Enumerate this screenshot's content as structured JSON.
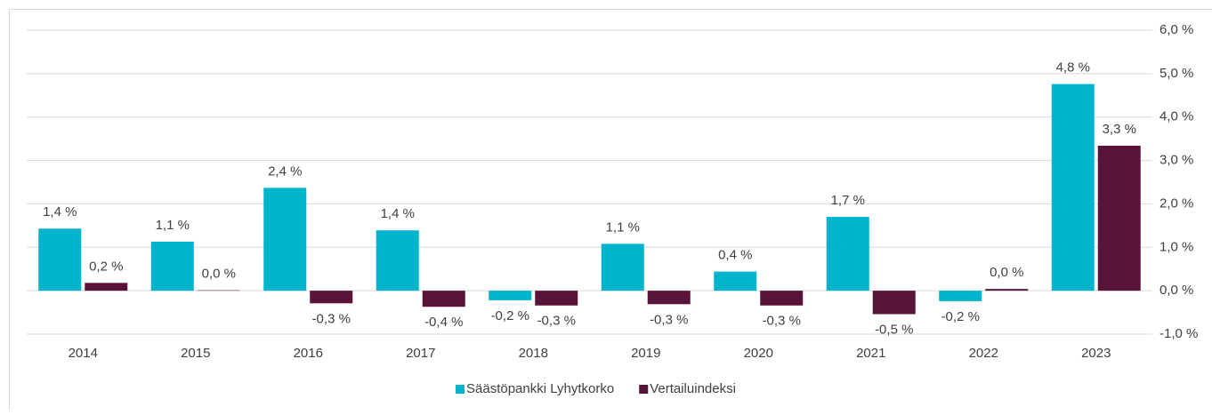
{
  "chart_data": {
    "type": "bar",
    "categories": [
      "2014",
      "2015",
      "2016",
      "2017",
      "2018",
      "2019",
      "2020",
      "2021",
      "2022",
      "2023"
    ],
    "series": [
      {
        "name": "Säästöpankki Lyhytkorko",
        "color": "#00b4cc",
        "values": [
          1.43,
          1.13,
          2.37,
          1.39,
          -0.22,
          1.08,
          0.44,
          1.7,
          -0.24,
          4.76
        ],
        "value_labels": [
          "1,4 %",
          "1,1 %",
          "2,4 %",
          "1,4 %",
          "-0,2 %",
          "1,1 %",
          "0,4 %",
          "1,7 %",
          "-0,2 %",
          "4,8 %"
        ]
      },
      {
        "name": "Vertailuindeksi",
        "color": "#58133a",
        "values": [
          0.18,
          0.01,
          -0.29,
          -0.37,
          -0.34,
          -0.31,
          -0.34,
          -0.54,
          0.04,
          3.34
        ],
        "value_labels": [
          "0,2 %",
          "0,0 %",
          "-0,3 %",
          "-0,4 %",
          "-0,3 %",
          "-0,3 %",
          "-0,3 %",
          "-0,5 %",
          "0,0 %",
          "3,3 %"
        ]
      }
    ],
    "ylim": [
      -1,
      6
    ],
    "yticks": [
      {
        "value": -1,
        "label": "-1,0 %"
      },
      {
        "value": 0,
        "label": "0,0 %"
      },
      {
        "value": 1,
        "label": "1,0 %"
      },
      {
        "value": 2,
        "label": "2,0 %"
      },
      {
        "value": 3,
        "label": "3,0 %"
      },
      {
        "value": 4,
        "label": "4,0 %"
      },
      {
        "value": 5,
        "label": "5,0 %"
      },
      {
        "value": 6,
        "label": "6,0 %"
      }
    ],
    "grid": true,
    "legend": "bottom"
  }
}
